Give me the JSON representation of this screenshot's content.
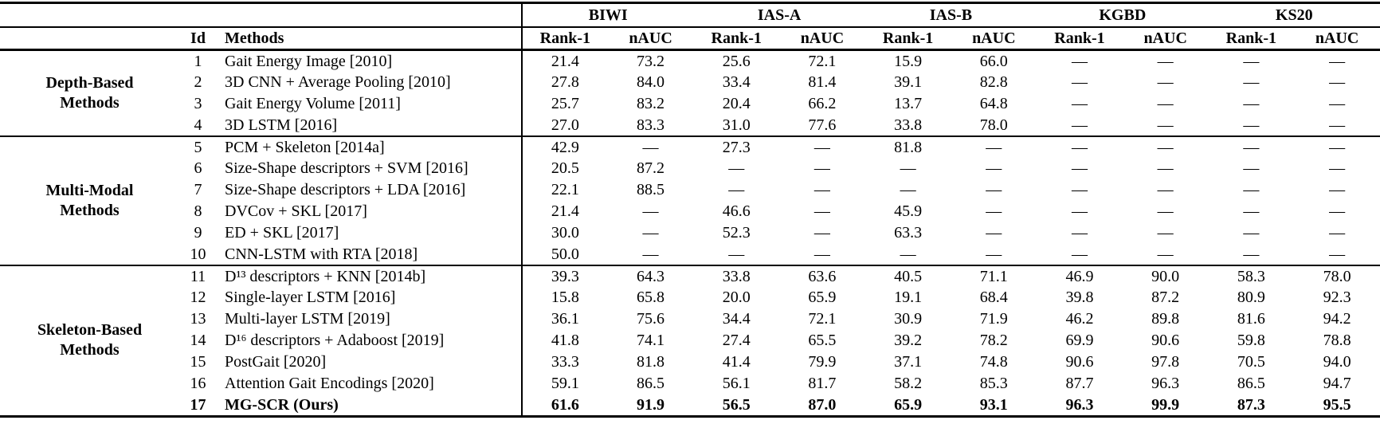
{
  "table": {
    "datasets": [
      "BIWI",
      "IAS-A",
      "IAS-B",
      "KGBD",
      "KS20"
    ],
    "id_header": "Id",
    "methods_header": "Methods",
    "metrics_per_dataset": [
      "Rank-1",
      "nAUC"
    ],
    "na_symbol": "—",
    "groups": [
      {
        "label_lines": [
          "Depth-Based",
          "Methods"
        ],
        "rows": [
          {
            "id": "1",
            "method": "Gait Energy Image [2010]",
            "bold": false,
            "values": [
              "21.4",
              "73.2",
              "25.6",
              "72.1",
              "15.9",
              "66.0",
              "—",
              "—",
              "—",
              "—"
            ]
          },
          {
            "id": "2",
            "method": "3D CNN + Average Pooling [2010]",
            "bold": false,
            "values": [
              "27.8",
              "84.0",
              "33.4",
              "81.4",
              "39.1",
              "82.8",
              "—",
              "—",
              "—",
              "—"
            ]
          },
          {
            "id": "3",
            "method": "Gait Energy Volume [2011]",
            "bold": false,
            "values": [
              "25.7",
              "83.2",
              "20.4",
              "66.2",
              "13.7",
              "64.8",
              "—",
              "—",
              "—",
              "—"
            ]
          },
          {
            "id": "4",
            "method": "3D LSTM [2016]",
            "bold": false,
            "values": [
              "27.0",
              "83.3",
              "31.0",
              "77.6",
              "33.8",
              "78.0",
              "—",
              "—",
              "—",
              "—"
            ]
          }
        ]
      },
      {
        "label_lines": [
          "Multi-Modal",
          "Methods"
        ],
        "rows": [
          {
            "id": "5",
            "method": "PCM + Skeleton [2014a]",
            "bold": false,
            "values": [
              "42.9",
              "—",
              "27.3",
              "—",
              "81.8",
              "—",
              "—",
              "—",
              "—",
              "—"
            ]
          },
          {
            "id": "6",
            "method": "Size-Shape descriptors + SVM [2016]",
            "bold": false,
            "values": [
              "20.5",
              "87.2",
              "—",
              "—",
              "—",
              "—",
              "—",
              "—",
              "—",
              "—"
            ]
          },
          {
            "id": "7",
            "method": "Size-Shape descriptors + LDA [2016]",
            "bold": false,
            "values": [
              "22.1",
              "88.5",
              "—",
              "—",
              "—",
              "—",
              "—",
              "—",
              "—",
              "—"
            ]
          },
          {
            "id": "8",
            "method": "DVCov + SKL [2017]",
            "bold": false,
            "values": [
              "21.4",
              "—",
              "46.6",
              "—",
              "45.9",
              "—",
              "—",
              "—",
              "—",
              "—"
            ]
          },
          {
            "id": "9",
            "method": "ED + SKL [2017]",
            "bold": false,
            "values": [
              "30.0",
              "—",
              "52.3",
              "—",
              "63.3",
              "—",
              "—",
              "—",
              "—",
              "—"
            ]
          },
          {
            "id": "10",
            "method": "CNN-LSTM with RTA [2018]",
            "bold": false,
            "values": [
              "50.0",
              "—",
              "—",
              "—",
              "—",
              "—",
              "—",
              "—",
              "—",
              "—"
            ]
          }
        ]
      },
      {
        "label_lines": [
          "Skeleton-Based",
          "Methods"
        ],
        "rows": [
          {
            "id": "11",
            "method": "D¹³ descriptors + KNN [2014b]",
            "bold": false,
            "values": [
              "39.3",
              "64.3",
              "33.8",
              "63.6",
              "40.5",
              "71.1",
              "46.9",
              "90.0",
              "58.3",
              "78.0"
            ]
          },
          {
            "id": "12",
            "method": "Single-layer LSTM [2016]",
            "bold": false,
            "values": [
              "15.8",
              "65.8",
              "20.0",
              "65.9",
              "19.1",
              "68.4",
              "39.8",
              "87.2",
              "80.9",
              "92.3"
            ]
          },
          {
            "id": "13",
            "method": "Multi-layer LSTM [2019]",
            "bold": false,
            "values": [
              "36.1",
              "75.6",
              "34.4",
              "72.1",
              "30.9",
              "71.9",
              "46.2",
              "89.8",
              "81.6",
              "94.2"
            ]
          },
          {
            "id": "14",
            "method": "D¹⁶ descriptors + Adaboost [2019]",
            "bold": false,
            "values": [
              "41.8",
              "74.1",
              "27.4",
              "65.5",
              "39.2",
              "78.2",
              "69.9",
              "90.6",
              "59.8",
              "78.8"
            ]
          },
          {
            "id": "15",
            "method": "PostGait [2020]",
            "bold": false,
            "values": [
              "33.3",
              "81.8",
              "41.4",
              "79.9",
              "37.1",
              "74.8",
              "90.6",
              "97.8",
              "70.5",
              "94.0"
            ]
          },
          {
            "id": "16",
            "method": "Attention Gait Encodings [2020]",
            "bold": false,
            "values": [
              "59.1",
              "86.5",
              "56.1",
              "81.7",
              "58.2",
              "85.3",
              "87.7",
              "96.3",
              "86.5",
              "94.7"
            ]
          },
          {
            "id": "17",
            "method": "MG-SCR (Ours)",
            "bold": true,
            "values": [
              "61.6",
              "91.9",
              "56.5",
              "87.0",
              "65.9",
              "93.1",
              "96.3",
              "99.9",
              "87.3",
              "95.5"
            ]
          }
        ]
      }
    ]
  }
}
